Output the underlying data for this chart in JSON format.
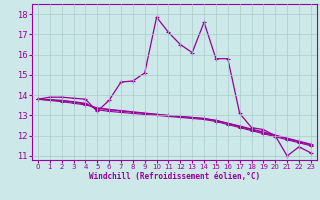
{
  "xlabel": "Windchill (Refroidissement éolien,°C)",
  "bg_color": "#cce8e8",
  "line_color": "#990099",
  "grid_color": "#aacccc",
  "xlim": [
    -0.5,
    23.5
  ],
  "ylim": [
    10.8,
    18.5
  ],
  "yticks": [
    11,
    12,
    13,
    14,
    15,
    16,
    17,
    18
  ],
  "xticks": [
    0,
    1,
    2,
    3,
    4,
    5,
    6,
    7,
    8,
    9,
    10,
    11,
    12,
    13,
    14,
    15,
    16,
    17,
    18,
    19,
    20,
    21,
    22,
    23
  ],
  "s1_x": [
    0,
    1,
    2,
    3,
    4,
    5,
    6,
    7,
    8,
    9,
    10,
    11,
    12,
    13,
    14,
    15,
    16,
    17,
    18,
    19,
    20,
    21,
    22,
    23
  ],
  "s1_y": [
    13.8,
    13.9,
    13.9,
    13.85,
    13.8,
    13.2,
    13.75,
    14.65,
    14.7,
    15.1,
    17.85,
    17.1,
    16.5,
    16.1,
    17.6,
    15.8,
    15.8,
    13.1,
    12.4,
    12.3,
    12.0,
    11.0,
    11.45,
    11.15
  ],
  "s2_x": [
    0,
    1,
    2,
    3,
    4,
    5,
    6,
    7,
    8,
    9,
    10,
    11,
    12,
    13,
    14,
    15,
    16,
    17,
    18,
    19,
    20,
    21,
    22,
    23
  ],
  "s2_y": [
    13.8,
    13.78,
    13.75,
    13.68,
    13.6,
    13.28,
    13.2,
    13.15,
    13.1,
    13.05,
    13.0,
    12.95,
    12.9,
    12.85,
    12.8,
    12.7,
    12.55,
    12.4,
    12.25,
    12.1,
    11.95,
    11.8,
    11.65,
    11.5
  ],
  "s3_x": [
    0,
    1,
    2,
    3,
    4,
    5,
    6,
    7,
    8,
    9,
    10,
    11,
    12,
    13,
    14,
    15,
    16,
    17,
    18,
    19,
    20,
    21,
    22,
    23
  ],
  "s3_y": [
    13.8,
    13.76,
    13.72,
    13.65,
    13.57,
    13.35,
    13.28,
    13.22,
    13.16,
    13.1,
    13.05,
    13.0,
    12.95,
    12.9,
    12.85,
    12.75,
    12.6,
    12.45,
    12.3,
    12.15,
    12.0,
    11.85,
    11.7,
    11.55
  ],
  "s4_x": [
    0,
    1,
    2,
    3,
    4,
    5,
    6,
    7,
    8,
    9,
    10,
    11,
    12,
    13,
    14,
    15,
    16,
    17,
    18,
    19,
    20,
    21,
    22,
    23
  ],
  "s4_y": [
    13.8,
    13.74,
    13.68,
    13.6,
    13.52,
    13.38,
    13.3,
    13.24,
    13.18,
    13.12,
    13.06,
    13.0,
    12.95,
    12.9,
    12.85,
    12.76,
    12.62,
    12.48,
    12.33,
    12.18,
    12.03,
    11.88,
    11.73,
    11.58
  ]
}
